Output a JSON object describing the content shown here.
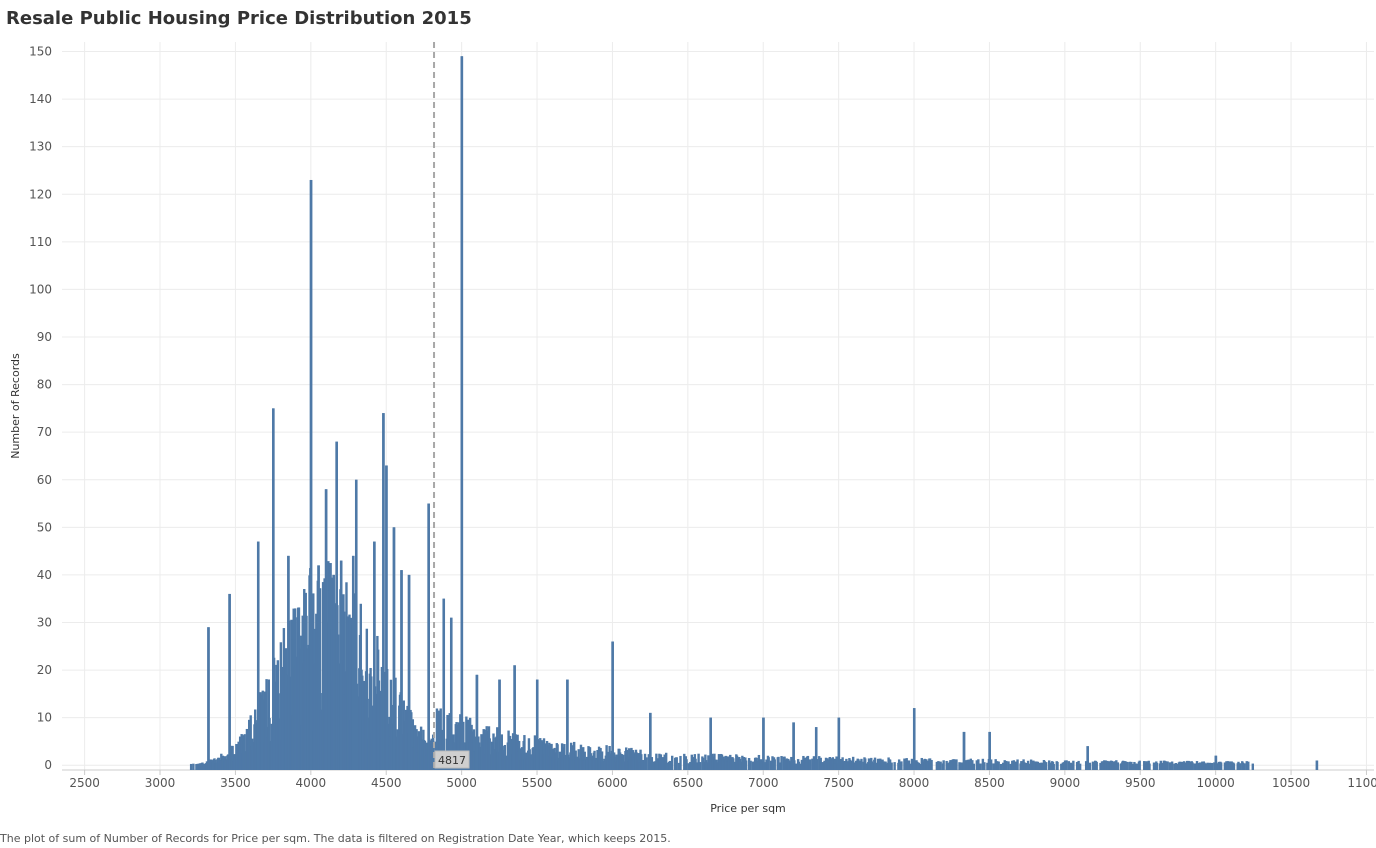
{
  "title": "Resale Public Housing Price Distribution 2015",
  "footer": "The plot of sum of Number of Records for Price per sqm. The data is filtered on Registration Date Year, which keeps 2015.",
  "colors": {
    "bar": "#4e79a7",
    "grid": "#ececec",
    "refline": "#a8a8a8",
    "axis_text": "#555555",
    "title": "#333333"
  },
  "chart_data": {
    "type": "bar",
    "title": "Resale Public Housing Price Distribution 2015",
    "xlabel": "Price per sqm",
    "ylabel": "Number of Records",
    "xlim": [
      2350,
      11050
    ],
    "ylim": [
      -1,
      152
    ],
    "xticks": [
      2500,
      3000,
      3500,
      4000,
      4500,
      5000,
      5500,
      6000,
      6500,
      7000,
      7500,
      8000,
      8500,
      9000,
      9500,
      10000,
      10500,
      11000
    ],
    "yticks": [
      0,
      10,
      20,
      30,
      40,
      50,
      60,
      70,
      80,
      90,
      100,
      110,
      120,
      130,
      140,
      150
    ],
    "grid": true,
    "reference_line": {
      "x": 4817,
      "label": "4817",
      "style": "dashed"
    },
    "spikes": [
      {
        "x": 5000,
        "y": 149
      },
      {
        "x": 4000,
        "y": 123
      },
      {
        "x": 3750,
        "y": 75
      },
      {
        "x": 4480,
        "y": 74
      },
      {
        "x": 4170,
        "y": 68
      },
      {
        "x": 4500,
        "y": 63
      },
      {
        "x": 4300,
        "y": 60
      },
      {
        "x": 4100,
        "y": 58
      },
      {
        "x": 4780,
        "y": 55
      },
      {
        "x": 4550,
        "y": 50
      },
      {
        "x": 3650,
        "y": 47
      },
      {
        "x": 4420,
        "y": 47
      },
      {
        "x": 3850,
        "y": 44
      },
      {
        "x": 4280,
        "y": 44
      },
      {
        "x": 4200,
        "y": 43
      },
      {
        "x": 4050,
        "y": 42
      },
      {
        "x": 4600,
        "y": 41
      },
      {
        "x": 4650,
        "y": 40
      },
      {
        "x": 4150,
        "y": 40
      },
      {
        "x": 3460,
        "y": 36
      },
      {
        "x": 4880,
        "y": 35
      },
      {
        "x": 4930,
        "y": 31
      },
      {
        "x": 3320,
        "y": 29
      },
      {
        "x": 5350,
        "y": 21
      },
      {
        "x": 6000,
        "y": 26
      },
      {
        "x": 5500,
        "y": 18
      },
      {
        "x": 5250,
        "y": 18
      },
      {
        "x": 5100,
        "y": 19
      },
      {
        "x": 5700,
        "y": 18
      },
      {
        "x": 8000,
        "y": 12
      },
      {
        "x": 6250,
        "y": 11
      },
      {
        "x": 6650,
        "y": 10
      },
      {
        "x": 7000,
        "y": 10
      },
      {
        "x": 7200,
        "y": 9
      },
      {
        "x": 7500,
        "y": 10
      },
      {
        "x": 7350,
        "y": 8
      },
      {
        "x": 8330,
        "y": 7
      },
      {
        "x": 8500,
        "y": 7
      },
      {
        "x": 9150,
        "y": 4
      },
      {
        "x": 10000,
        "y": 2
      },
      {
        "x": 10670,
        "y": 1
      }
    ]
  }
}
